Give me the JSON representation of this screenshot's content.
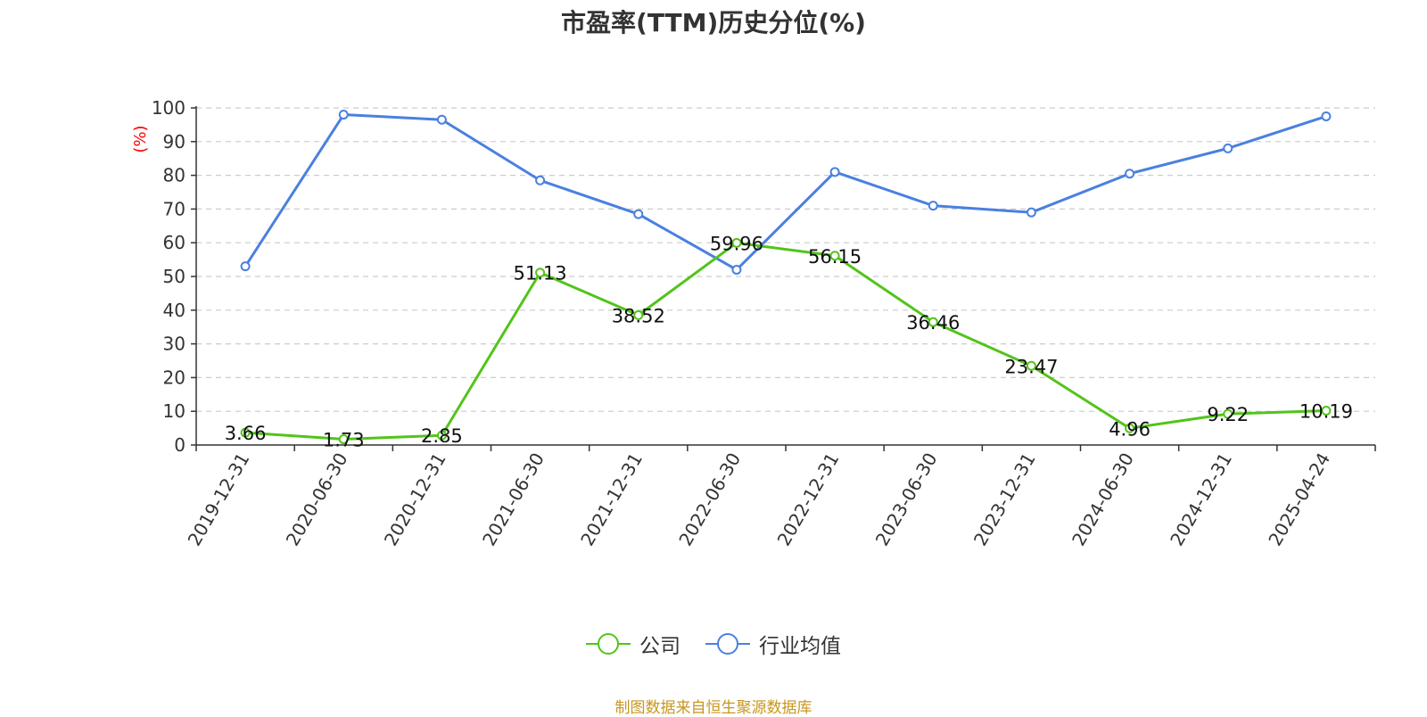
{
  "title": "市盈率(TTM)历史分位(%)",
  "source_text": "制图数据来自恒生聚源数据库",
  "colors": {
    "company": "#52c41a",
    "industry": "#4a80e0",
    "unit": "#ff0000",
    "axis": "#333333",
    "grid": "#cccccc",
    "source": "#c8961e"
  },
  "chart_data": {
    "type": "line",
    "title": "市盈率(TTM)历史分位(%)",
    "ylabel": "(%)",
    "xlabel": "",
    "ylim": [
      0,
      100
    ],
    "yticks": [
      0,
      10,
      20,
      30,
      40,
      50,
      60,
      70,
      80,
      90,
      100
    ],
    "grid": true,
    "legend_position": "bottom-center",
    "categories": [
      "2019-12-31",
      "2020-06-30",
      "2020-12-31",
      "2021-06-30",
      "2021-12-31",
      "2022-06-30",
      "2022-12-31",
      "2023-06-30",
      "2023-12-31",
      "2024-06-30",
      "2024-12-31",
      "2025-04-24"
    ],
    "series": [
      {
        "name": "公司",
        "color": "#52c41a",
        "show_labels": true,
        "values": [
          3.66,
          1.73,
          2.85,
          51.13,
          38.52,
          59.96,
          56.15,
          36.46,
          23.47,
          4.96,
          9.22,
          10.19
        ]
      },
      {
        "name": "行业均值",
        "color": "#4a80e0",
        "show_labels": false,
        "values": [
          53,
          98,
          96.5,
          78.5,
          68.5,
          52,
          81,
          71,
          69,
          80.5,
          88,
          97.5
        ]
      }
    ]
  }
}
